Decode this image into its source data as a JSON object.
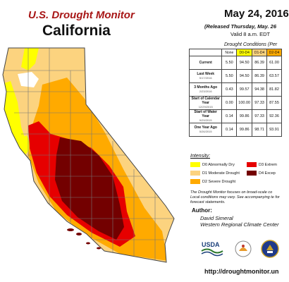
{
  "header": {
    "title": "U.S. Drought Monitor",
    "region": "California",
    "date": "May 24, 2016",
    "released": "(Released Thursday, May. 26",
    "valid": "Valid 8 a.m. EDT"
  },
  "table": {
    "title": "Drought Conditions (Per",
    "columns": [
      "None",
      "D0-D4",
      "D1-D4",
      "D2-D4"
    ],
    "column_colors": [
      "#ffffff",
      "#ffff00",
      "#fcd37f",
      "#ffaa00"
    ],
    "rows": [
      {
        "label": "Current",
        "sub": "",
        "values": [
          "5.50",
          "94.50",
          "86.39",
          "61.00"
        ]
      },
      {
        "label": "Last Week",
        "sub": "5/17/2016",
        "values": [
          "5.50",
          "94.50",
          "86.39",
          "63.57"
        ]
      },
      {
        "label": "3 Months Ago",
        "sub": "2/23/2016",
        "values": [
          "0.43",
          "99.57",
          "94.38",
          "81.82"
        ]
      },
      {
        "label": "Start of Calendar Year",
        "sub": "12/29/2015",
        "values": [
          "0.00",
          "100.00",
          "97.33",
          "87.55"
        ]
      },
      {
        "label": "Start of Water Year",
        "sub": "9/29/2015",
        "values": [
          "0.14",
          "99.86",
          "97.33",
          "92.36"
        ]
      },
      {
        "label": "One Year Ago",
        "sub": "5/26/2015",
        "values": [
          "0.14",
          "99.86",
          "98.71",
          "93.91"
        ]
      }
    ]
  },
  "legend": {
    "title": "Intensity:",
    "items": [
      {
        "label": "D0 Abnormally Dry",
        "color": "#ffff00"
      },
      {
        "label": "D1 Moderate Drought",
        "color": "#fcd37f"
      },
      {
        "label": "D2 Severe Drought",
        "color": "#ffaa00"
      },
      {
        "label": "D3 Extrem",
        "color": "#e60000"
      },
      {
        "label": "D4 Excep",
        "color": "#730000"
      }
    ]
  },
  "note": "The Drought Monitor focuses on broad-scale co Local conditions may vary. See accompanying te for forecast statements.",
  "author": {
    "heading": "Author:",
    "name": "David Simeral",
    "org": "Western Regional Climate Center"
  },
  "logos": {
    "usda": "USDA"
  },
  "url": "http://droughtmonitor.un"
}
